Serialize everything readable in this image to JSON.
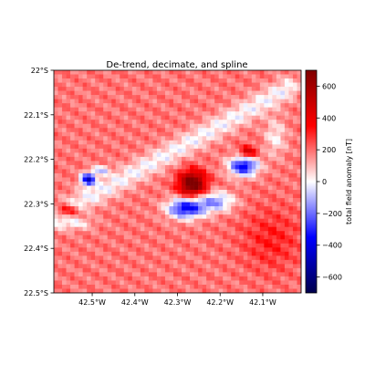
{
  "chart_data": {
    "type": "heatmap",
    "title": "De-trend, decimate, and spline",
    "x_ticks": [
      {
        "value": -42.5,
        "label": "42.5°W"
      },
      {
        "value": -42.4,
        "label": "42.4°W"
      },
      {
        "value": -42.3,
        "label": "42.3°W"
      },
      {
        "value": -42.2,
        "label": "42.2°W"
      },
      {
        "value": -42.1,
        "label": "42.1°W"
      }
    ],
    "y_ticks": [
      {
        "value": -22.0,
        "label": "22°S"
      },
      {
        "value": -22.1,
        "label": "22.1°S"
      },
      {
        "value": -22.2,
        "label": "22.2°S"
      },
      {
        "value": -22.3,
        "label": "22.3°S"
      },
      {
        "value": -22.4,
        "label": "22.4°S"
      },
      {
        "value": -22.5,
        "label": "22.5°S"
      }
    ],
    "xlim": [
      -42.59,
      -42.01
    ],
    "ylim": [
      -22.5,
      -22.0
    ],
    "colorbar": {
      "label": "total field anomaly [nT]",
      "colormap": "seismic",
      "vmin": -700,
      "vmax": 700,
      "ticks": [
        {
          "value": 600,
          "label": "600"
        },
        {
          "value": 400,
          "label": "400"
        },
        {
          "value": 200,
          "label": "200"
        },
        {
          "value": 0,
          "label": "0"
        },
        {
          "value": -200,
          "label": "−200"
        },
        {
          "value": -400,
          "label": "−400"
        },
        {
          "value": -600,
          "label": "−600"
        }
      ]
    },
    "features": [
      {
        "type": "linear",
        "x0": -42.59,
        "y0": -22.33,
        "x1": -42.04,
        "y1": -22.04,
        "amp": -190,
        "sigma": 0.018
      },
      {
        "type": "blob",
        "x": -42.51,
        "y": -22.245,
        "amp": -620,
        "sx": 0.012,
        "sy": 0.01
      },
      {
        "type": "blob",
        "x": -42.48,
        "y": -22.225,
        "amp": -260,
        "sx": 0.014,
        "sy": 0.008
      },
      {
        "type": "blob",
        "x": -42.56,
        "y": -22.315,
        "amp": 330,
        "sx": 0.02,
        "sy": 0.01
      },
      {
        "type": "blob",
        "x": -42.54,
        "y": -22.345,
        "amp": -160,
        "sx": 0.03,
        "sy": 0.01
      },
      {
        "type": "blob",
        "x": -42.265,
        "y": -22.255,
        "amp": 600,
        "sx": 0.022,
        "sy": 0.02
      },
      {
        "type": "blob",
        "x": -42.28,
        "y": -22.31,
        "amp": -560,
        "sx": 0.03,
        "sy": 0.016
      },
      {
        "type": "blob",
        "x": -42.21,
        "y": -22.295,
        "amp": -330,
        "sx": 0.03,
        "sy": 0.016
      },
      {
        "type": "blob",
        "x": -42.145,
        "y": -22.215,
        "amp": -560,
        "sx": 0.024,
        "sy": 0.016
      },
      {
        "type": "blob",
        "x": -42.135,
        "y": -22.185,
        "amp": 340,
        "sx": 0.014,
        "sy": 0.01
      },
      {
        "type": "blob",
        "x": -42.07,
        "y": -22.15,
        "amp": -170,
        "sx": 0.018,
        "sy": 0.03
      },
      {
        "type": "blob",
        "x": -42.08,
        "y": -22.38,
        "amp": 120,
        "sx": 0.05,
        "sy": 0.05
      }
    ],
    "background": 190,
    "xlabel": "",
    "ylabel": ""
  }
}
